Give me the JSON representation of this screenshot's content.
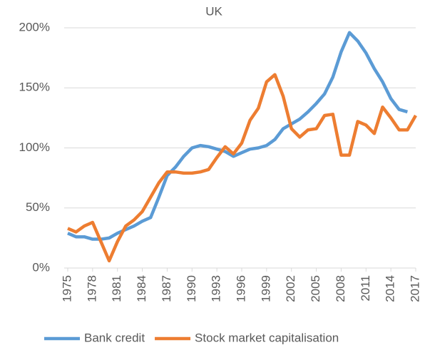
{
  "chart_data": {
    "type": "line",
    "title": "UK",
    "x": [
      1975,
      1976,
      1977,
      1978,
      1979,
      1980,
      1981,
      1982,
      1983,
      1984,
      1985,
      1986,
      1987,
      1988,
      1989,
      1990,
      1991,
      1992,
      1993,
      1994,
      1995,
      1996,
      1997,
      1998,
      1999,
      2000,
      2001,
      2002,
      2003,
      2004,
      2005,
      2006,
      2007,
      2008,
      2009,
      2010,
      2011,
      2012,
      2013,
      2014,
      2015,
      2016,
      2017
    ],
    "series": [
      {
        "name": "Bank credit",
        "color": "#5b9bd5",
        "values": [
          29,
          26,
          26,
          24,
          24,
          25,
          29,
          32,
          35,
          39,
          42,
          59,
          77,
          84,
          93,
          100,
          102,
          101,
          99,
          97,
          93,
          96,
          99,
          100,
          102,
          107,
          116,
          120,
          124,
          130,
          137,
          145,
          159,
          180,
          196,
          189,
          179,
          166,
          155,
          141,
          132,
          130,
          null
        ]
      },
      {
        "name": "Stock market capitalisation",
        "color": "#ed7d31",
        "values": [
          33,
          30,
          35,
          38,
          22,
          6,
          22,
          35,
          40,
          47,
          59,
          71,
          80,
          80,
          79,
          79,
          80,
          82,
          92,
          101,
          95,
          104,
          123,
          133,
          155,
          161,
          143,
          116,
          109,
          115,
          116,
          127,
          128,
          94,
          94,
          122,
          119,
          112,
          134,
          125,
          115,
          115,
          127
        ]
      }
    ],
    "xlim": [
      1975,
      2017
    ],
    "xticks": [
      1975,
      1978,
      1981,
      1984,
      1987,
      1990,
      1993,
      1996,
      1999,
      2002,
      2005,
      2008,
      2011,
      2014,
      2017
    ],
    "ylim": [
      0,
      200
    ],
    "yticks": [
      {
        "value": 0,
        "label": "0%"
      },
      {
        "value": 50,
        "label": "50%"
      },
      {
        "value": 100,
        "label": "100%"
      },
      {
        "value": 150,
        "label": "150%"
      },
      {
        "value": 200,
        "label": "200%"
      }
    ],
    "grid": true,
    "legend": "bottom"
  }
}
